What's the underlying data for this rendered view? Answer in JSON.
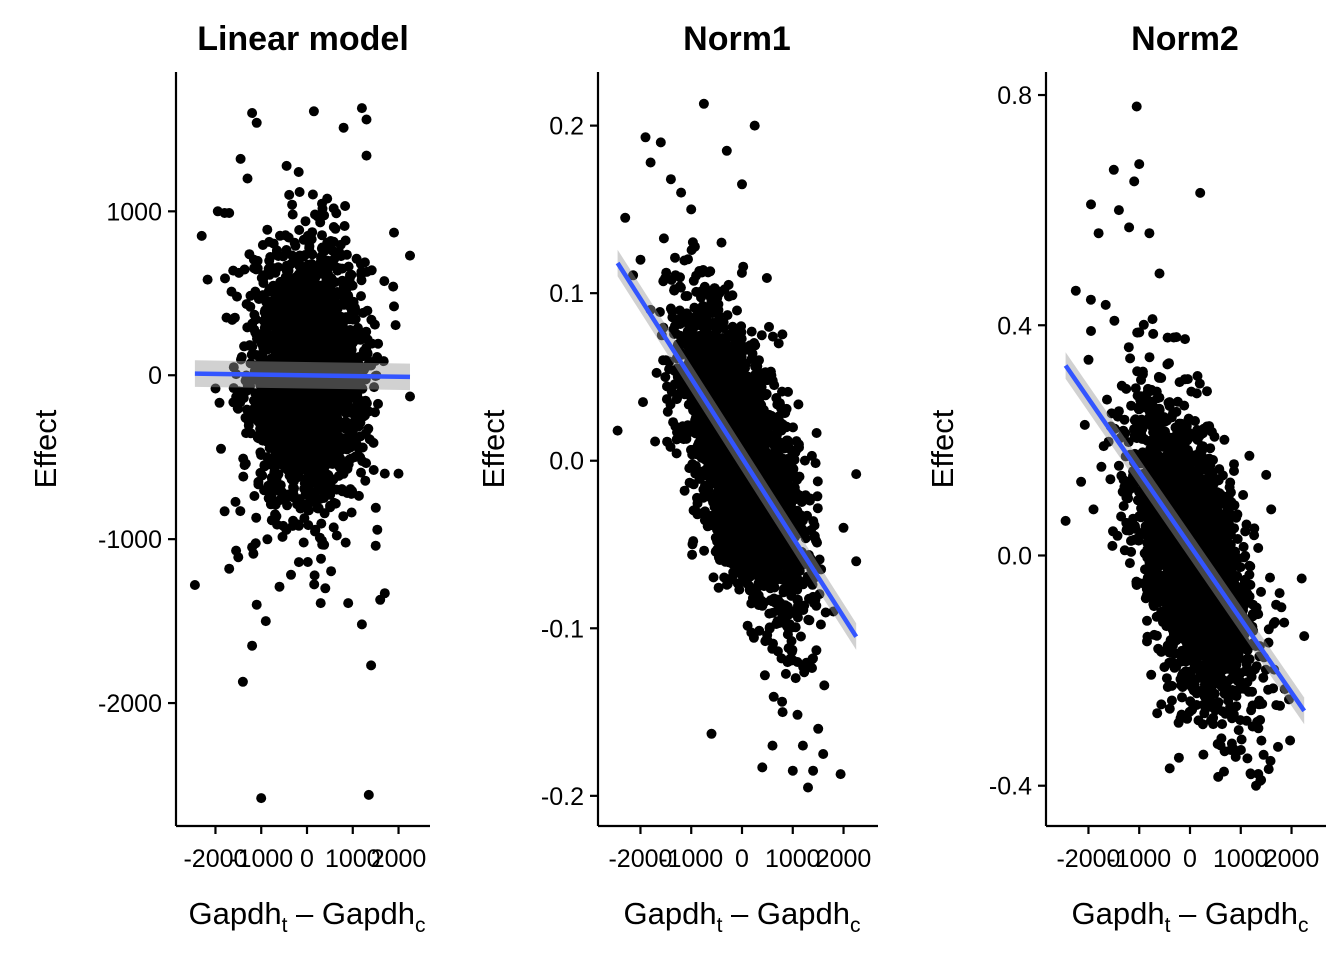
{
  "chart_data": [
    {
      "type": "scatter",
      "title": "Linear model",
      "xlabel": {
        "main": "Gapdh",
        "sub_t": "t",
        "dash": " – ",
        "main2": "Gapdh",
        "sub_c": "c"
      },
      "ylabel": "Effect",
      "xlim": [
        -2600,
        2600
      ],
      "ylim": [
        -2750,
        1850
      ],
      "x_ticks": [
        -2000,
        -1000,
        0,
        1000,
        2000
      ],
      "x_tick_labels": [
        "-2000",
        "-1000",
        "0",
        "1000",
        "2000"
      ],
      "y_ticks": [
        -2000,
        -1000,
        0,
        1000
      ],
      "y_tick_labels": [
        "-2000",
        "-1000",
        "0",
        "1000"
      ],
      "grid": false,
      "point_color": "#000000",
      "fit_color": "#3355FF",
      "fit": {
        "x": [
          -2450,
          2250
        ],
        "y": [
          10,
          -10
        ]
      },
      "cloud": {
        "n": 2600,
        "x_sd": 600,
        "y_mean": 0,
        "y_sd": 380,
        "slope": 0
      },
      "outliers": [
        [
          -2450,
          -1280
        ],
        [
          -2300,
          850
        ],
        [
          -1950,
          1000
        ],
        [
          -1800,
          990
        ],
        [
          -1450,
          1320
        ],
        [
          -1200,
          1600
        ],
        [
          -1100,
          1540
        ],
        [
          -1300,
          1200
        ],
        [
          -1200,
          -1650
        ],
        [
          -1400,
          -1870
        ],
        [
          -1100,
          -1400
        ],
        [
          -900,
          -1500
        ],
        [
          -1000,
          -2580
        ],
        [
          150,
          1610
        ],
        [
          800,
          1510
        ],
        [
          1200,
          1630
        ],
        [
          1300,
          1560
        ],
        [
          1300,
          1340
        ],
        [
          1350,
          -2560
        ],
        [
          1400,
          -1770
        ],
        [
          1200,
          -1520
        ],
        [
          900,
          -1390
        ],
        [
          1700,
          -1330
        ],
        [
          1600,
          -1370
        ],
        [
          2250,
          730
        ],
        [
          2250,
          -130
        ],
        [
          1900,
          870
        ],
        [
          1900,
          420
        ],
        [
          2000,
          -600
        ],
        [
          1700,
          -600
        ],
        [
          -1700,
          990
        ],
        [
          -1650,
          510
        ],
        [
          -1800,
          -830
        ],
        [
          -1550,
          -1070
        ],
        [
          -1700,
          -1180
        ],
        [
          -1500,
          -1110
        ],
        [
          -600,
          -1290
        ],
        [
          400,
          -1300
        ],
        [
          300,
          -1390
        ],
        [
          1500,
          -1040
        ]
      ]
    },
    {
      "type": "scatter",
      "title": "Norm1",
      "xlabel": {
        "main": "Gapdh",
        "sub_t": "t",
        "dash": " – ",
        "main2": "Gapdh",
        "sub_c": "c"
      },
      "ylabel": "Effect",
      "xlim": [
        -2600,
        2600
      ],
      "ylim": [
        -0.218,
        0.232
      ],
      "x_ticks": [
        -2000,
        -1000,
        0,
        1000,
        2000
      ],
      "x_tick_labels": [
        "-2000",
        "-1000",
        "0",
        "1000",
        "2000"
      ],
      "y_ticks": [
        -0.2,
        -0.1,
        0.0,
        0.1,
        0.2
      ],
      "y_tick_labels": [
        "-0.2",
        "-0.1",
        "0.0",
        "0.1",
        "0.2"
      ],
      "grid": false,
      "point_color": "#000000",
      "fit_color": "#3355FF",
      "fit": {
        "x": [
          -2450,
          2250
        ],
        "y": [
          0.118,
          -0.105
        ]
      },
      "cloud": {
        "n": 2600,
        "x_sd": 600,
        "y_mean": 0.0,
        "y_sd": 0.035,
        "slope": -4.75e-05
      },
      "outliers": [
        [
          -2450,
          0.018
        ],
        [
          -1900,
          0.193
        ],
        [
          -1800,
          0.178
        ],
        [
          -1600,
          0.19
        ],
        [
          -1400,
          0.168
        ],
        [
          -750,
          0.213
        ],
        [
          250,
          0.2
        ],
        [
          -2300,
          0.145
        ],
        [
          -2000,
          0.12
        ],
        [
          -1950,
          0.035
        ],
        [
          2250,
          -0.008
        ],
        [
          2250,
          -0.06
        ],
        [
          1400,
          -0.185
        ],
        [
          1300,
          -0.195
        ],
        [
          1000,
          -0.185
        ],
        [
          600,
          -0.17
        ],
        [
          400,
          -0.183
        ],
        [
          -600,
          -0.163
        ],
        [
          1800,
          -0.09
        ],
        [
          2000,
          -0.04
        ],
        [
          -1200,
          0.16
        ],
        [
          -1000,
          0.15
        ],
        [
          0,
          0.165
        ],
        [
          -300,
          0.185
        ],
        [
          1500,
          -0.16
        ],
        [
          1600,
          -0.175
        ],
        [
          1200,
          -0.17
        ],
        [
          800,
          -0.15
        ],
        [
          -1500,
          0.06
        ],
        [
          -1800,
          0.09
        ]
      ]
    },
    {
      "type": "scatter",
      "title": "Norm2",
      "xlabel": {
        "main": "Gapdh",
        "sub_t": "t",
        "dash": " – ",
        "main2": "Gapdh",
        "sub_c": "c"
      },
      "ylabel": "Effect",
      "xlim": [
        -2600,
        2600
      ],
      "ylim": [
        -0.47,
        0.84
      ],
      "x_ticks": [
        -2000,
        -1000,
        0,
        1000,
        2000
      ],
      "x_tick_labels": [
        "-2000",
        "-1000",
        "0",
        "1000",
        "2000"
      ],
      "y_ticks": [
        -0.4,
        0.0,
        0.4,
        0.8
      ],
      "y_tick_labels": [
        "-0.4",
        "0.0",
        "0.4",
        "0.8"
      ],
      "grid": false,
      "point_color": "#000000",
      "fit_color": "#3355FF",
      "fit": {
        "x": [
          -2450,
          2250
        ],
        "y": [
          0.33,
          -0.27
        ]
      },
      "cloud": {
        "n": 2600,
        "x_sd": 600,
        "y_mean": 0.0,
        "y_sd": 0.11,
        "slope": -0.000128
      },
      "outliers": [
        [
          -2450,
          0.06
        ],
        [
          -2250,
          0.46
        ],
        [
          -1950,
          0.39
        ],
        [
          -1950,
          0.61
        ],
        [
          -1500,
          0.67
        ],
        [
          -1050,
          0.78
        ],
        [
          -1000,
          0.68
        ],
        [
          -1100,
          0.65
        ],
        [
          -1400,
          0.6
        ],
        [
          -1200,
          0.57
        ],
        [
          200,
          0.63
        ],
        [
          -1800,
          0.56
        ],
        [
          -2000,
          0.34
        ],
        [
          2250,
          -0.14
        ],
        [
          2200,
          -0.04
        ],
        [
          1800,
          -0.09
        ],
        [
          1400,
          -0.39
        ],
        [
          1300,
          -0.4
        ],
        [
          1200,
          -0.38
        ],
        [
          -400,
          -0.37
        ],
        [
          600,
          -0.33
        ],
        [
          1700,
          -0.26
        ],
        [
          1950,
          -0.25
        ],
        [
          -800,
          0.56
        ],
        [
          -600,
          0.49
        ],
        [
          1500,
          0.14
        ],
        [
          1600,
          0.08
        ],
        [
          -1900,
          0.08
        ],
        [
          -1700,
          0.19
        ],
        [
          900,
          -0.35
        ]
      ]
    }
  ]
}
